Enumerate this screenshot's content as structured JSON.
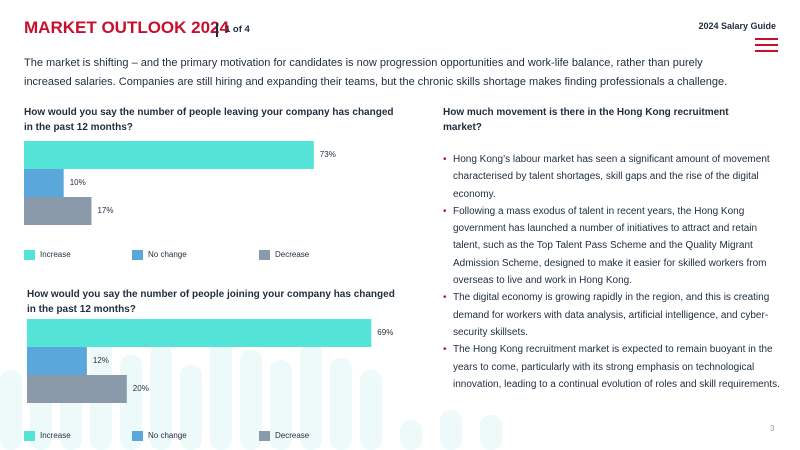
{
  "header": {
    "title": "MARKET OUTLOOK 2024",
    "page_indicator": "1 of 4",
    "guide": "2024 Salary Guide"
  },
  "intro": "The market is shifting – and the primary motivation for candidates is now progression opportunities and work-life balance, rather than purely increased salaries. Companies are still hiring and expanding their teams, but the chronic skills shortage makes finding professionals a challenge.",
  "chart_data": [
    {
      "type": "bar",
      "orientation": "horizontal",
      "title": "How would you say the number of people leaving your company has changed in the past 12 months?",
      "categories": [
        "Increase",
        "No change",
        "Decrease"
      ],
      "values": [
        73,
        10,
        17
      ],
      "value_labels": [
        "73%",
        "10%",
        "17%"
      ],
      "colors": [
        "#54e3d7",
        "#5aa7dc",
        "#8a9aab"
      ]
    },
    {
      "type": "bar",
      "orientation": "horizontal",
      "title": "How would you say the number of people joining your company has changed in the past 12 months?",
      "categories": [
        "Increase",
        "No change",
        "Decrease"
      ],
      "values": [
        69,
        12,
        20
      ],
      "value_labels": [
        "69%",
        "12%",
        "20%"
      ],
      "colors": [
        "#54e3d7",
        "#5aa7dc",
        "#8a9aab"
      ]
    }
  ],
  "sidebar": {
    "title": "How much movement is there in the Hong Kong recruitment market?",
    "bullets": [
      "Hong Kong’s labour market has seen a significant amount of movement characterised by talent shortages, skill gaps and the rise of the digital economy.",
      "Following a mass exodus of talent in recent years, the Hong Kong government has launched a number of initiatives to attract and retain talent, such as the Top Talent Pass Scheme and the Quality Migrant Admission Scheme, designed to make it easier for skilled workers from overseas to live and work in Hong Kong.",
      "The digital economy is growing rapidly in the region, and this is creating demand for workers with data analysis, artificial intelligence, and cyber-security skillsets.",
      "The Hong Kong recruitment market is expected to remain buoyant in the years to come, particularly with its strong emphasis on technological innovation, leading to a continual evolution of roles and skill requirements."
    ]
  },
  "page_number": "3"
}
